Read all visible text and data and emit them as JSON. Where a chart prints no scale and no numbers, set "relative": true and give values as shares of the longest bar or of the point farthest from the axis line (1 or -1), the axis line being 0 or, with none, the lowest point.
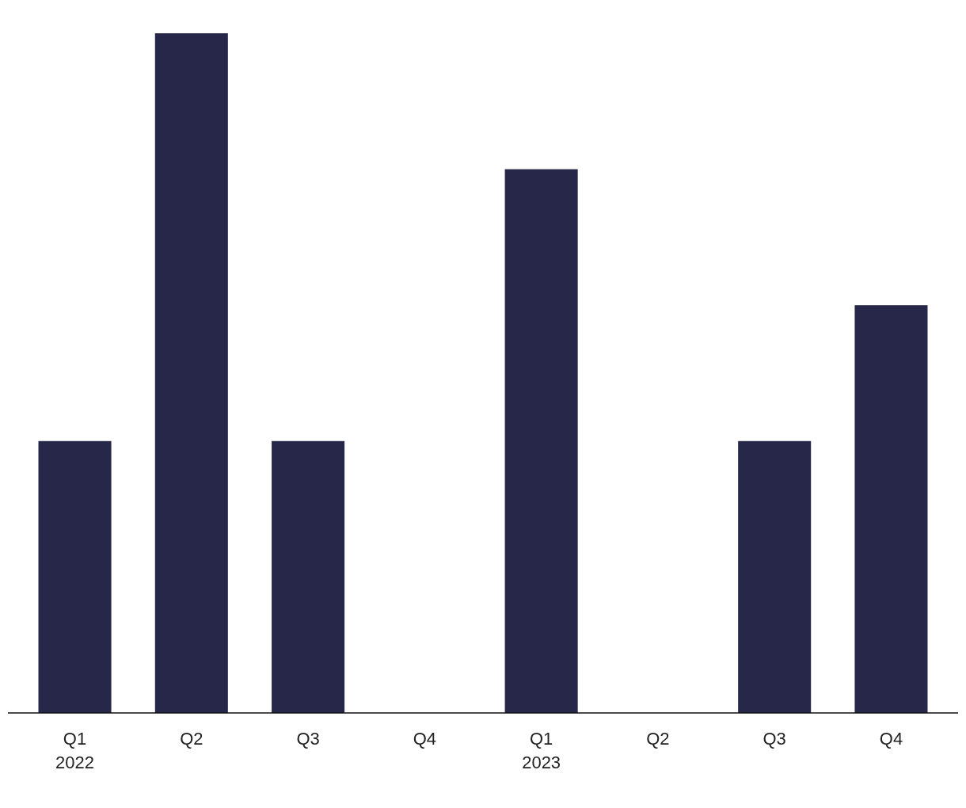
{
  "chart_data": {
    "type": "bar",
    "relative": true,
    "categories": [
      "Q1\n2022",
      "Q2",
      "Q3",
      "Q4",
      "Q1\n2023",
      "Q2",
      "Q3",
      "Q4"
    ],
    "values": [
      0.4,
      1,
      0.4,
      0,
      0.8,
      0,
      0.4,
      0.6
    ],
    "color": "#272849"
  }
}
